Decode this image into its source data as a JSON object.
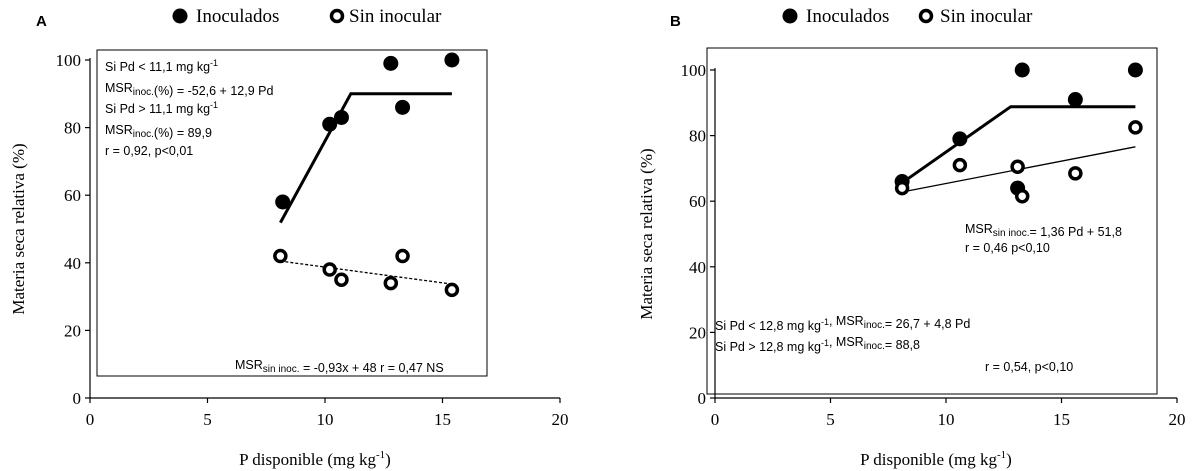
{
  "figure_name": "two-panel-scatter",
  "chart_data": [
    {
      "type": "scatter",
      "panel": "A",
      "xlabel": "P disponible (mg kg",
      "xlabel_sup": "-1",
      "xlabel_end": ")",
      "ylabel": "Materia seca relativa (%)",
      "xlim": [
        0,
        20
      ],
      "ylim": [
        0,
        100
      ],
      "xticks": [
        0,
        5,
        10,
        15,
        20
      ],
      "yticks": [
        0,
        20,
        40,
        60,
        80,
        100
      ],
      "legend": {
        "position": "top",
        "entries": [
          {
            "label": "Inoculados",
            "marker": "filled-circle"
          },
          {
            "label": "Sin inocular",
            "marker": "open-circle"
          }
        ]
      },
      "series": [
        {
          "name": "Inoculados",
          "marker": "filled-circle",
          "points": [
            [
              8.2,
              58
            ],
            [
              10.2,
              81
            ],
            [
              10.7,
              83
            ],
            [
              12.8,
              99
            ],
            [
              13.3,
              86
            ],
            [
              15.4,
              100
            ]
          ],
          "fit": {
            "style": "thick",
            "segments": [
              [
                [
                  8.1,
                  51.9
                ],
                [
                  11.1,
                  90
                ],
                [
                  15.4,
                  90
                ]
              ]
            ]
          }
        },
        {
          "name": "Sin inocular",
          "marker": "open-circle",
          "points": [
            [
              8.1,
              42
            ],
            [
              10.2,
              38
            ],
            [
              10.7,
              35
            ],
            [
              12.8,
              34
            ],
            [
              13.3,
              42
            ],
            [
              15.4,
              32
            ]
          ],
          "fit": {
            "style": "dashed",
            "segments": [
              [
                [
                  8.1,
                  40.5
                ],
                [
                  15.4,
                  33.7
                ]
              ]
            ]
          }
        }
      ],
      "annotations": [
        {
          "lines": [
            [
              {
                "t": "Si Pd < 11,1 mg kg"
              },
              {
                "t": "-1",
                "sup": true
              }
            ],
            [
              {
                "t": "   MSR"
              },
              {
                "t": "inoc.",
                "sub": true
              },
              {
                "t": "(%) = -52,6 + 12,9 Pd"
              }
            ],
            [
              {
                "t": "Si Pd > 11,1 mg kg"
              },
              {
                "t": "-1",
                "sup": true
              }
            ],
            [
              {
                "t": "   MSR"
              },
              {
                "t": "inoc.",
                "sub": true
              },
              {
                "t": "(%) = 89,9"
              }
            ],
            [
              {
                "t": "                r = 0,92,  p<0,01"
              }
            ]
          ]
        },
        {
          "lines": [
            [
              {
                "t": "MSR"
              },
              {
                "t": "sin inoc.",
                "sub": true
              },
              {
                "t": " = -0,93x + 48 r = 0,47 NS"
              }
            ]
          ]
        }
      ]
    },
    {
      "type": "scatter",
      "panel": "B",
      "xlabel": "P disponible (mg kg",
      "xlabel_sup": "-1",
      "xlabel_end": ")",
      "ylabel": "Materia seca relativa (%)",
      "xlim": [
        0,
        20
      ],
      "ylim": [
        0,
        100
      ],
      "xticks": [
        0,
        5,
        10,
        15,
        20
      ],
      "yticks": [
        0,
        20,
        40,
        60,
        80,
        100
      ],
      "legend": {
        "position": "top",
        "entries": [
          {
            "label": "Inoculados",
            "marker": "filled-circle"
          },
          {
            "label": "Sin inocular",
            "marker": "open-circle"
          }
        ]
      },
      "series": [
        {
          "name": "Inoculados",
          "marker": "filled-circle",
          "points": [
            [
              8.1,
              66
            ],
            [
              10.6,
              79
            ],
            [
              13.1,
              64
            ],
            [
              13.3,
              100
            ],
            [
              15.6,
              91
            ],
            [
              18.2,
              100
            ]
          ],
          "fit": {
            "style": "thick",
            "segments": [
              [
                [
                  8.1,
                  65.6
                ],
                [
                  12.8,
                  88.8
                ],
                [
                  18.2,
                  88.8
                ]
              ]
            ]
          }
        },
        {
          "name": "Sin inocular",
          "marker": "open-circle",
          "points": [
            [
              8.1,
              64
            ],
            [
              10.6,
              71
            ],
            [
              13.1,
              70.5
            ],
            [
              13.3,
              61.5
            ],
            [
              15.6,
              68.5
            ],
            [
              18.2,
              82.5
            ]
          ],
          "fit": {
            "style": "thin",
            "segments": [
              [
                [
                  8.1,
                  62.8
                ],
                [
                  18.2,
                  76.6
                ]
              ]
            ]
          }
        }
      ],
      "annotations": [
        {
          "lines": [
            [
              {
                "t": "MSR"
              },
              {
                "t": "sin inoc.",
                "sub": true
              },
              {
                "t": "= 1,36 Pd + 51,8"
              }
            ],
            [
              {
                "t": "       r = 0,46 p<0,10"
              }
            ]
          ]
        },
        {
          "lines": [
            [
              {
                "t": "Si Pd < 12,8 mg kg"
              },
              {
                "t": "-1",
                "sup": true
              },
              {
                "t": ", MSR"
              },
              {
                "t": "inoc.",
                "sub": true
              },
              {
                "t": "= 26,7 + 4,8 Pd"
              }
            ],
            [
              {
                "t": "Si Pd > 12,8 mg kg"
              },
              {
                "t": "-1",
                "sup": true
              },
              {
                "t": ", MSR"
              },
              {
                "t": "inoc.",
                "sub": true
              },
              {
                "t": "= 88,8"
              }
            ]
          ]
        },
        {
          "lines": [
            [
              {
                "t": "r = 0,54,  p<0,10"
              }
            ]
          ]
        }
      ]
    }
  ]
}
